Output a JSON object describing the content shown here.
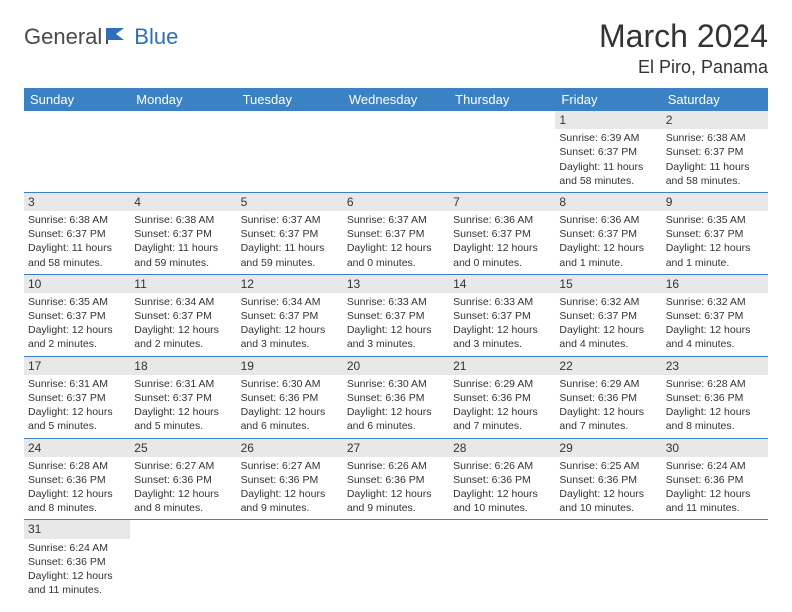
{
  "brand": {
    "part1": "General",
    "part2": "Blue"
  },
  "title": "March 2024",
  "location": "El Piro, Panama",
  "colors": {
    "header_bg": "#3b82c4",
    "header_text": "#ffffff",
    "daynum_bg": "#e8e8e8",
    "row_divider": "#3b82c4",
    "brand_gray": "#4a4a4a",
    "brand_blue": "#2d6fb8",
    "page_bg": "#ffffff",
    "text": "#333333"
  },
  "typography": {
    "month_title_fontsize": 32,
    "location_fontsize": 18,
    "weekday_fontsize": 13,
    "daynum_fontsize": 12,
    "cell_fontsize": 10.5,
    "logo_fontsize": 22
  },
  "weekdays": [
    "Sunday",
    "Monday",
    "Tuesday",
    "Wednesday",
    "Thursday",
    "Friday",
    "Saturday"
  ],
  "grid": {
    "columns": 7,
    "rows": 6,
    "start_weekday_index": 5,
    "days_in_month": 31
  },
  "days": [
    {
      "n": 1,
      "sunrise": "6:39 AM",
      "sunset": "6:37 PM",
      "daylight": "11 hours and 58 minutes."
    },
    {
      "n": 2,
      "sunrise": "6:38 AM",
      "sunset": "6:37 PM",
      "daylight": "11 hours and 58 minutes."
    },
    {
      "n": 3,
      "sunrise": "6:38 AM",
      "sunset": "6:37 PM",
      "daylight": "11 hours and 58 minutes."
    },
    {
      "n": 4,
      "sunrise": "6:38 AM",
      "sunset": "6:37 PM",
      "daylight": "11 hours and 59 minutes."
    },
    {
      "n": 5,
      "sunrise": "6:37 AM",
      "sunset": "6:37 PM",
      "daylight": "11 hours and 59 minutes."
    },
    {
      "n": 6,
      "sunrise": "6:37 AM",
      "sunset": "6:37 PM",
      "daylight": "12 hours and 0 minutes."
    },
    {
      "n": 7,
      "sunrise": "6:36 AM",
      "sunset": "6:37 PM",
      "daylight": "12 hours and 0 minutes."
    },
    {
      "n": 8,
      "sunrise": "6:36 AM",
      "sunset": "6:37 PM",
      "daylight": "12 hours and 1 minute."
    },
    {
      "n": 9,
      "sunrise": "6:35 AM",
      "sunset": "6:37 PM",
      "daylight": "12 hours and 1 minute."
    },
    {
      "n": 10,
      "sunrise": "6:35 AM",
      "sunset": "6:37 PM",
      "daylight": "12 hours and 2 minutes."
    },
    {
      "n": 11,
      "sunrise": "6:34 AM",
      "sunset": "6:37 PM",
      "daylight": "12 hours and 2 minutes."
    },
    {
      "n": 12,
      "sunrise": "6:34 AM",
      "sunset": "6:37 PM",
      "daylight": "12 hours and 3 minutes."
    },
    {
      "n": 13,
      "sunrise": "6:33 AM",
      "sunset": "6:37 PM",
      "daylight": "12 hours and 3 minutes."
    },
    {
      "n": 14,
      "sunrise": "6:33 AM",
      "sunset": "6:37 PM",
      "daylight": "12 hours and 3 minutes."
    },
    {
      "n": 15,
      "sunrise": "6:32 AM",
      "sunset": "6:37 PM",
      "daylight": "12 hours and 4 minutes."
    },
    {
      "n": 16,
      "sunrise": "6:32 AM",
      "sunset": "6:37 PM",
      "daylight": "12 hours and 4 minutes."
    },
    {
      "n": 17,
      "sunrise": "6:31 AM",
      "sunset": "6:37 PM",
      "daylight": "12 hours and 5 minutes."
    },
    {
      "n": 18,
      "sunrise": "6:31 AM",
      "sunset": "6:37 PM",
      "daylight": "12 hours and 5 minutes."
    },
    {
      "n": 19,
      "sunrise": "6:30 AM",
      "sunset": "6:36 PM",
      "daylight": "12 hours and 6 minutes."
    },
    {
      "n": 20,
      "sunrise": "6:30 AM",
      "sunset": "6:36 PM",
      "daylight": "12 hours and 6 minutes."
    },
    {
      "n": 21,
      "sunrise": "6:29 AM",
      "sunset": "6:36 PM",
      "daylight": "12 hours and 7 minutes."
    },
    {
      "n": 22,
      "sunrise": "6:29 AM",
      "sunset": "6:36 PM",
      "daylight": "12 hours and 7 minutes."
    },
    {
      "n": 23,
      "sunrise": "6:28 AM",
      "sunset": "6:36 PM",
      "daylight": "12 hours and 8 minutes."
    },
    {
      "n": 24,
      "sunrise": "6:28 AM",
      "sunset": "6:36 PM",
      "daylight": "12 hours and 8 minutes."
    },
    {
      "n": 25,
      "sunrise": "6:27 AM",
      "sunset": "6:36 PM",
      "daylight": "12 hours and 8 minutes."
    },
    {
      "n": 26,
      "sunrise": "6:27 AM",
      "sunset": "6:36 PM",
      "daylight": "12 hours and 9 minutes."
    },
    {
      "n": 27,
      "sunrise": "6:26 AM",
      "sunset": "6:36 PM",
      "daylight": "12 hours and 9 minutes."
    },
    {
      "n": 28,
      "sunrise": "6:26 AM",
      "sunset": "6:36 PM",
      "daylight": "12 hours and 10 minutes."
    },
    {
      "n": 29,
      "sunrise": "6:25 AM",
      "sunset": "6:36 PM",
      "daylight": "12 hours and 10 minutes."
    },
    {
      "n": 30,
      "sunrise": "6:24 AM",
      "sunset": "6:36 PM",
      "daylight": "12 hours and 11 minutes."
    },
    {
      "n": 31,
      "sunrise": "6:24 AM",
      "sunset": "6:36 PM",
      "daylight": "12 hours and 11 minutes."
    }
  ],
  "labels": {
    "sunrise_prefix": "Sunrise: ",
    "sunset_prefix": "Sunset: ",
    "daylight_prefix": "Daylight: "
  }
}
